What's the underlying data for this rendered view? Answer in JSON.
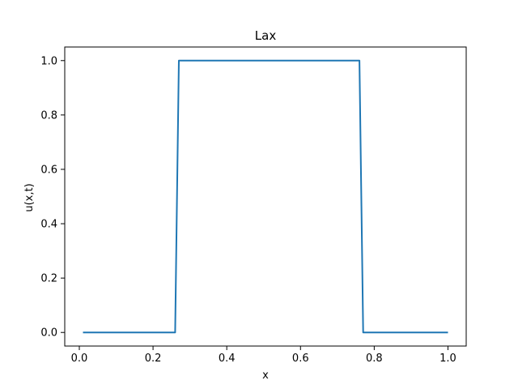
{
  "chart_data": {
    "type": "line",
    "title": "Lax",
    "xlabel": "x",
    "ylabel": "u(x,t)",
    "xlim": [
      -0.0395,
      1.0495
    ],
    "ylim": [
      -0.05,
      1.05
    ],
    "xticks": [
      0.0,
      0.2,
      0.4,
      0.6,
      0.8,
      1.0
    ],
    "xtick_labels": [
      "0.0",
      "0.2",
      "0.4",
      "0.6",
      "0.8",
      "1.0"
    ],
    "yticks": [
      0.0,
      0.2,
      0.4,
      0.6,
      0.8,
      1.0
    ],
    "ytick_labels": [
      "0.0",
      "0.2",
      "0.4",
      "0.6",
      "0.8",
      "1.0"
    ],
    "grid": false,
    "series": [
      {
        "color": "#1f77b4",
        "x": [
          0.01,
          0.26,
          0.27,
          0.76,
          0.77,
          1.0
        ],
        "values": [
          0.0,
          0.0,
          1.0,
          1.0,
          0.0,
          0.0
        ]
      }
    ]
  }
}
